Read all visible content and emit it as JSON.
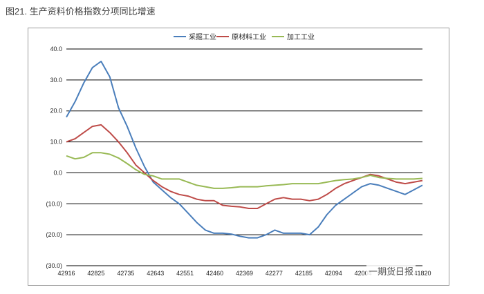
{
  "title": "图21. 生产资料价格指数分项同比增速",
  "watermark": "一期货日报",
  "chart_data": {
    "type": "line",
    "x_tick_labels": [
      "42916",
      "42825",
      "42735",
      "42643",
      "42551",
      "42460",
      "42369",
      "42277",
      "42185",
      "42094",
      "42004",
      "41912",
      "41820"
    ],
    "y_tick_labels": [
      "40.0",
      "30.0",
      "20.0",
      "10.0",
      "0.0",
      "(10.0)",
      "(20.0)",
      "(30.0)"
    ],
    "ylim": [
      -30,
      40
    ],
    "grid": "horizontal",
    "legend_position": "top",
    "series": [
      {
        "name": "采掘工业",
        "color": "#4a7ebb",
        "values": [
          18,
          23,
          29,
          34,
          36,
          31,
          21,
          15,
          8,
          2,
          -3,
          -5.5,
          -8,
          -10,
          -13,
          -16,
          -18.5,
          -19.5,
          -19.5,
          -19.8,
          -20.5,
          -21,
          -21,
          -20,
          -18.5,
          -19.5,
          -19.5,
          -19.5,
          -20,
          -17.5,
          -13.5,
          -10.5,
          -8.5,
          -6.5,
          -4.5,
          -3.5,
          -4,
          -5,
          -6,
          -7,
          -5.5,
          -4
        ]
      },
      {
        "name": "原材料工业",
        "color": "#be4b48",
        "values": [
          10,
          11,
          13,
          15,
          15.5,
          13,
          10,
          6.5,
          2.5,
          0,
          -2.5,
          -4.5,
          -6,
          -7,
          -7.5,
          -8.5,
          -9,
          -9,
          -10.5,
          -10.8,
          -11,
          -11.5,
          -11.5,
          -10,
          -8.5,
          -8,
          -8.5,
          -8.5,
          -9,
          -8.5,
          -7,
          -5,
          -3.5,
          -2.5,
          -1.5,
          -0.5,
          -1,
          -2,
          -3,
          -3.5,
          -3,
          -2.5
        ]
      },
      {
        "name": "加工工业",
        "color": "#98b954",
        "values": [
          5.5,
          4.5,
          5,
          6.5,
          6.5,
          6,
          4.8,
          3,
          1,
          -0.5,
          -1,
          -2,
          -2,
          -2,
          -3,
          -4,
          -4.5,
          -5,
          -5,
          -4.8,
          -4.5,
          -4.5,
          -4.5,
          -4.2,
          -4,
          -3.8,
          -3.5,
          -3.5,
          -3.5,
          -3.5,
          -3,
          -2.5,
          -2.2,
          -2,
          -1.5,
          -0.8,
          -1.5,
          -1.8,
          -2,
          -2,
          -2,
          -1.8
        ]
      }
    ]
  }
}
